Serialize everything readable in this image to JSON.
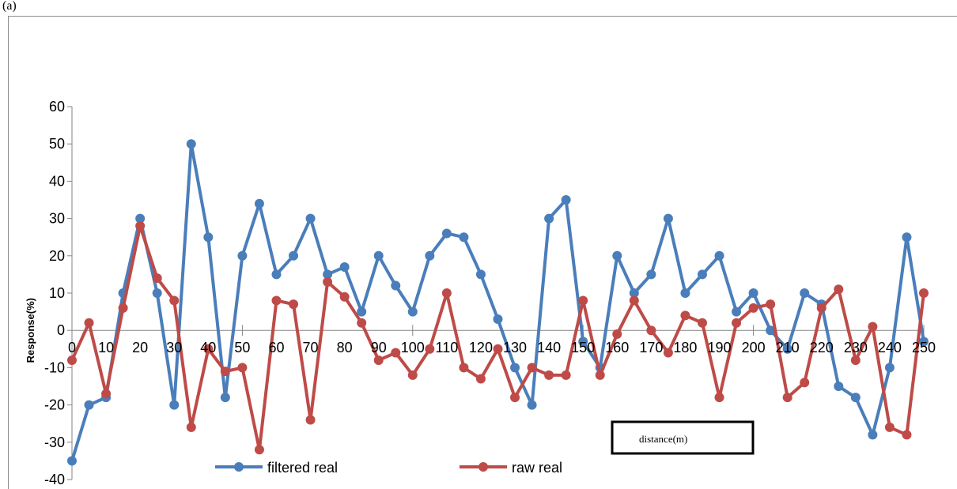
{
  "panel_label": "(a)",
  "colors": {
    "filtered": "#4a7ebb",
    "raw": "#be4b48"
  },
  "chart_data": {
    "type": "line",
    "title": "",
    "xlabel": "distance(m)",
    "ylabel": "Response(%)",
    "ylim": [
      -40,
      60
    ],
    "yticks": [
      -40,
      -30,
      -20,
      -10,
      0,
      10,
      20,
      30,
      40,
      50,
      60
    ],
    "xlim": [
      0,
      250
    ],
    "xticks": [
      0,
      10,
      20,
      30,
      40,
      50,
      60,
      70,
      80,
      90,
      100,
      110,
      120,
      130,
      140,
      150,
      160,
      170,
      180,
      190,
      200,
      210,
      220,
      230,
      240,
      250
    ],
    "legend_position": "bottom",
    "grid": false,
    "x": [
      0,
      5,
      10,
      15,
      20,
      25,
      30,
      35,
      40,
      45,
      50,
      55,
      60,
      65,
      70,
      75,
      80,
      85,
      90,
      95,
      100,
      105,
      110,
      115,
      120,
      125,
      130,
      135,
      140,
      145,
      150,
      155,
      160,
      165,
      170,
      175,
      180,
      185,
      190,
      195,
      200,
      205,
      210,
      215,
      220,
      225,
      230,
      235,
      240,
      245,
      250
    ],
    "series": [
      {
        "name": "filtered real",
        "values": [
          -35,
          -20,
          -18,
          10,
          30,
          10,
          -20,
          50,
          25,
          -18,
          20,
          34,
          15,
          20,
          30,
          15,
          17,
          5,
          20,
          12,
          5,
          20,
          26,
          25,
          15,
          3,
          -10,
          -20,
          30,
          35,
          -3,
          -10,
          20,
          10,
          15,
          30,
          10,
          15,
          20,
          5,
          10,
          0,
          -5,
          10,
          7,
          -15,
          -18,
          -28,
          -10,
          25,
          -3
        ]
      },
      {
        "name": "raw real",
        "values": [
          -8,
          2,
          -17,
          6,
          28,
          14,
          8,
          -26,
          -5,
          -11,
          -10,
          -32,
          8,
          7,
          -24,
          13,
          9,
          2,
          -8,
          -6,
          -12,
          -5,
          10,
          -10,
          -13,
          -5,
          -18,
          -10,
          -12,
          -12,
          8,
          -12,
          -1,
          8,
          0,
          -6,
          4,
          2,
          -18,
          2,
          6,
          7,
          -18,
          -14,
          6,
          11,
          -8,
          1,
          -26,
          -28,
          10
        ]
      }
    ]
  }
}
